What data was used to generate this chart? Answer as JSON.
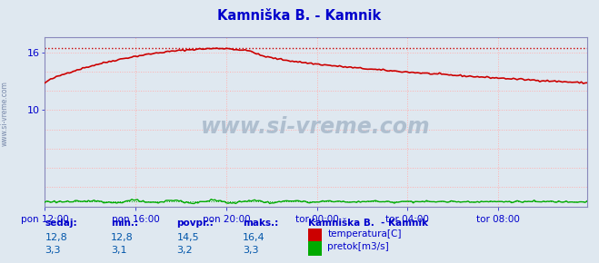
{
  "title": "Kamniška B. - Kamnik",
  "title_color": "#0000cc",
  "bg_color": "#dfe8f0",
  "plot_bg_color": "#dfe8f0",
  "grid_color": "#ffb0b0",
  "ylim": [
    0,
    17.6
  ],
  "yticks": [
    10,
    16
  ],
  "xlim_max": 287,
  "watermark": "www.si-vreme.com",
  "watermark_color": "#aabbcc",
  "legend_title": "Kamniška B.  - Kamnik",
  "legend_title_color": "#0000cc",
  "temp_color": "#cc0000",
  "flow_color": "#00aa00",
  "xtick_labels": [
    "pon 12:00",
    "pon 16:00",
    "pon 20:00",
    "tor 00:00",
    "tor 04:00",
    "tor 08:00"
  ],
  "xtick_positions": [
    0,
    48,
    96,
    144,
    192,
    240
  ],
  "total_points": 288,
  "sedaj_label": "sedaj:",
  "min_label": "min.:",
  "povpr_label": "povpr.:",
  "maks_label": "maks.:",
  "temp_sedaj": "12,8",
  "temp_min": "12,8",
  "temp_povpr": "14,5",
  "temp_maks": "16,4",
  "flow_sedaj": "3,3",
  "flow_min": "3,1",
  "flow_povpr": "3,2",
  "flow_maks": "3,3",
  "temp_label": "temperatura[C]",
  "flow_label": "pretok[m3/s]",
  "label_color": "#0000cc",
  "stat_color": "#0055aa",
  "tick_label_color": "#0000cc",
  "spine_color": "#8888bb",
  "sidebar_text": "www.si-vreme.com",
  "sidebar_color": "#7788aa"
}
